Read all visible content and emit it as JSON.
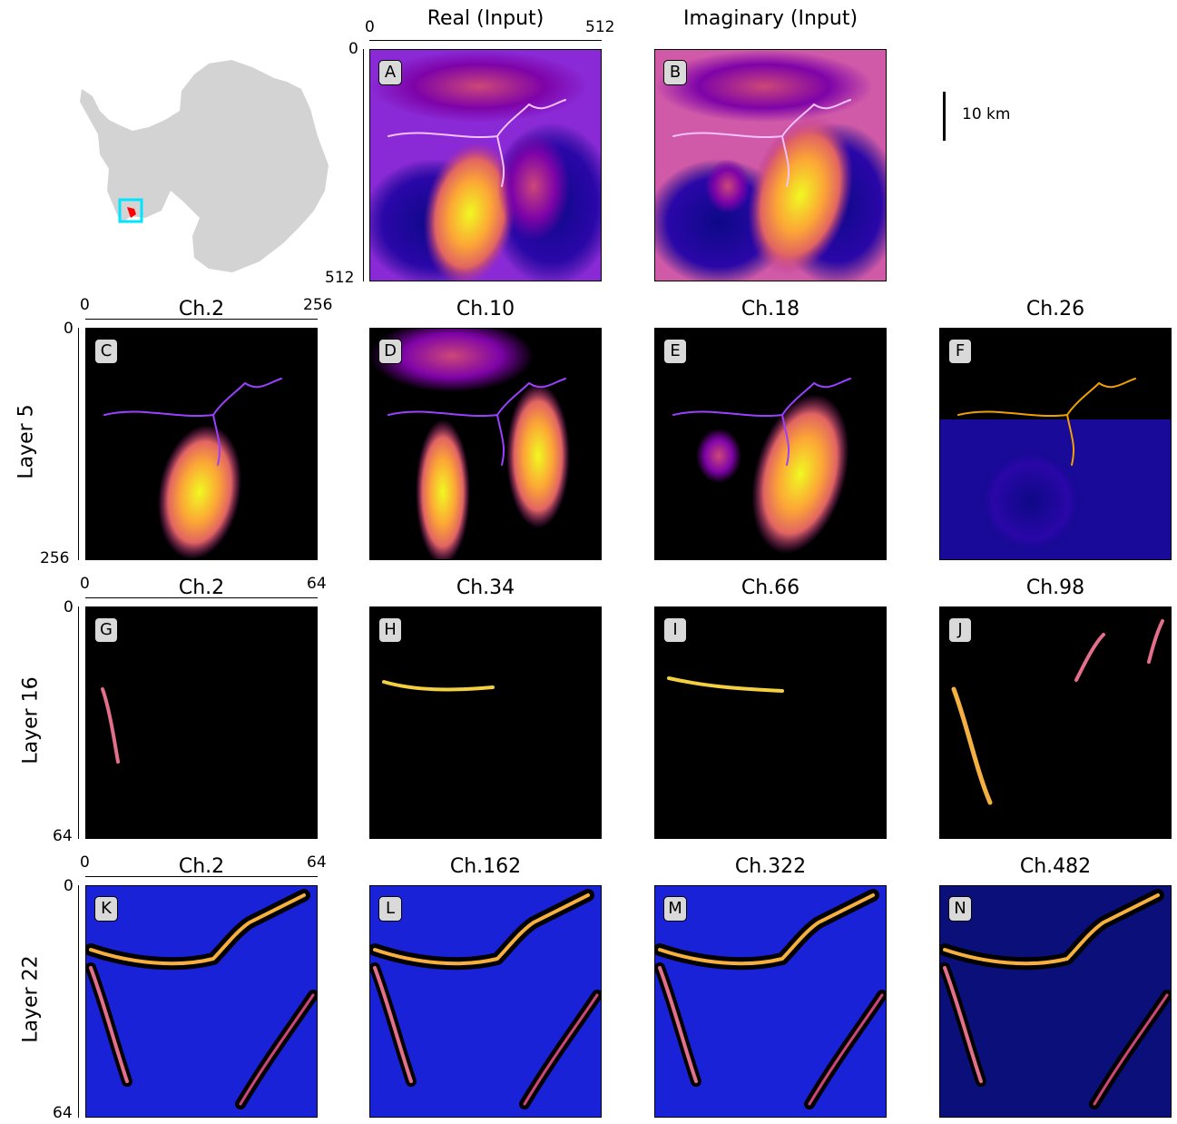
{
  "header": {
    "real_title": "Real (Input)",
    "imag_title": "Imaginary (Input)",
    "input_axis": {
      "x_min": "0",
      "x_max": "512",
      "y_min": "0",
      "y_max": "512"
    },
    "scale_bar_label": "10 km"
  },
  "rows": [
    {
      "label": "Layer 5",
      "axis": {
        "x_min": "0",
        "x_max": "256",
        "y_min": "0",
        "y_max": "256"
      },
      "panels": [
        {
          "badge": "C",
          "title": "Ch.2"
        },
        {
          "badge": "D",
          "title": "Ch.10"
        },
        {
          "badge": "E",
          "title": "Ch.18"
        },
        {
          "badge": "F",
          "title": "Ch.26"
        }
      ]
    },
    {
      "label": "Layer 16",
      "axis": {
        "x_min": "0",
        "x_max": "64",
        "y_min": "0",
        "y_max": "64"
      },
      "panels": [
        {
          "badge": "G",
          "title": "Ch.2"
        },
        {
          "badge": "H",
          "title": "Ch.34"
        },
        {
          "badge": "I",
          "title": "Ch.66"
        },
        {
          "badge": "J",
          "title": "Ch.98"
        }
      ]
    },
    {
      "label": "Layer 22",
      "axis": {
        "x_min": "0",
        "x_max": "64",
        "y_min": "0",
        "y_max": "64"
      },
      "panels": [
        {
          "badge": "K",
          "title": "Ch.2"
        },
        {
          "badge": "L",
          "title": "Ch.162"
        },
        {
          "badge": "M",
          "title": "Ch.322"
        },
        {
          "badge": "N",
          "title": "Ch.482"
        }
      ]
    }
  ],
  "input_badges": {
    "real": "A",
    "imag": "B"
  },
  "colors": {
    "map_land": "#d3d3d3",
    "map_box": "#00e5ff",
    "map_marker": "#ff0000",
    "plasma_dark": "#0d0887",
    "plasma_mid": "#cc4778",
    "plasma_bright": "#f0f921"
  }
}
